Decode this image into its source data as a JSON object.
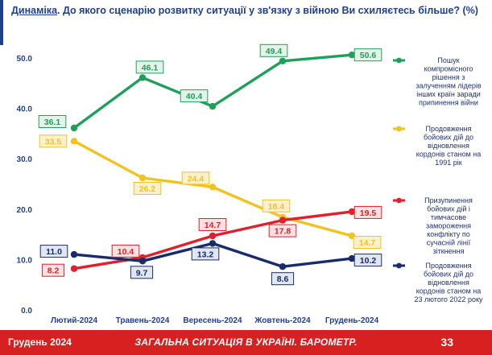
{
  "title": {
    "keyword": "Динаміка",
    "rest": ". До якого сценарію розвитку ситуації у зв'язку з війною Ви схиляєтесь більше? (%)"
  },
  "footer": {
    "left": "Грудень 2024",
    "center": "ЗАГАЛЬНА СИТУАЦІЯ В УКРАЇНІ. БАРОМЕТР.",
    "page": "33"
  },
  "chart_data": {
    "type": "line",
    "categories": [
      "Лютий-2024",
      "Травень-2024",
      "Вересень-2024",
      "Жовтень-2024",
      "Грудень-2024"
    ],
    "ylim": [
      0,
      50
    ],
    "yticks": [
      "0.0",
      "10.0",
      "20.0",
      "30.0",
      "40.0",
      "50.0"
    ],
    "legend_position": "right",
    "series": [
      {
        "name": "Пошук компромісного рішення з залученням лідерів інших країн заради припинення війни",
        "legend_lines": [
          "Пошук",
          "компромісного",
          "рішення з",
          "залученням лідерів",
          "інших країн заради",
          "припинення війни"
        ],
        "color": "#1fa05a",
        "box_fill": "#e3f3e9",
        "values": [
          36.1,
          46.1,
          40.4,
          49.4,
          50.6
        ],
        "labels": [
          "36.1",
          "46.1",
          "40.4",
          "49.4",
          "50.6"
        ]
      },
      {
        "name": "Продовження бойових дій до відновлення кордонів станом на 1991 рік",
        "legend_lines": [
          "Продовження",
          "бойових дій до",
          "відновлення",
          "кордонів станом на",
          "1991 рік"
        ],
        "color": "#f2c21f",
        "box_fill": "#fbf1cf",
        "values": [
          33.5,
          26.2,
          24.4,
          18.4,
          14.7
        ],
        "labels": [
          "33.5",
          "26.2",
          "24.4",
          "18.4",
          "14.7"
        ]
      },
      {
        "name": "Призупинення бойових дій і тимчасове замороження конфлікту по сучасній лінії зіткнення",
        "legend_lines": [
          "Призупинення",
          "бойових дій і",
          "тимчасове",
          "замороження",
          "конфлікту по",
          "сучасній лінії",
          "зіткнення"
        ],
        "color": "#e0202a",
        "box_fill": "#fbe1e1",
        "values": [
          8.2,
          10.4,
          14.7,
          17.8,
          19.5
        ],
        "labels": [
          "8.2",
          "10.4",
          "14.7",
          "17.8",
          "19.5"
        ]
      },
      {
        "name": "Продовження бойових дій до відновлення кордонів станом на 23 лютого 2022 року",
        "legend_lines": [
          "Продовження",
          "бойових дій до",
          "відновлення",
          "кордонів станом на",
          "23 лютого 2022 року"
        ],
        "color": "#1a2b6b",
        "box_fill": "#e1e6f3",
        "values": [
          11.0,
          9.7,
          13.2,
          8.6,
          10.2
        ],
        "labels": [
          "11.0",
          "9.7",
          "13.2",
          "8.6",
          "10.2"
        ]
      }
    ]
  }
}
